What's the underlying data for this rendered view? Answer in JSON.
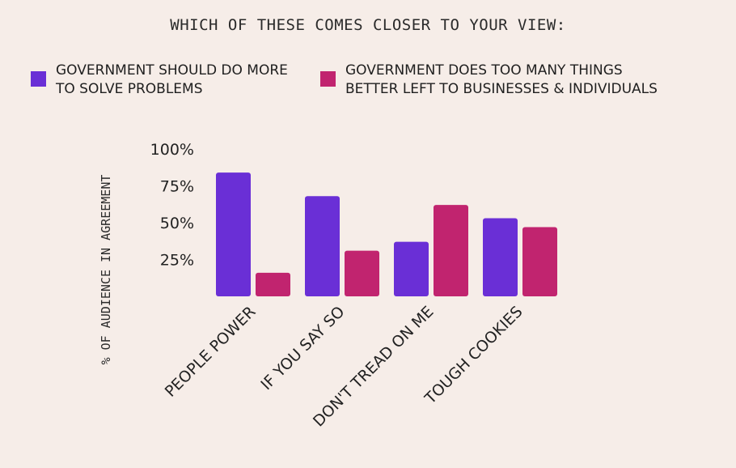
{
  "colors": {
    "background": "#f6ede8",
    "series_1": "#6a2fd6",
    "series_2": "#c1246f"
  },
  "chart_data": {
    "type": "bar",
    "title": "WHICH OF THESE COMES CLOSER TO YOUR VIEW:",
    "ylabel": "% OF AUDIENCE IN AGREEMENT",
    "xlabel": "",
    "categories": [
      "PEOPLE POWER",
      "IF YOU SAY SO",
      "DON'T TREAD ON ME",
      "TOUGH COOKIES"
    ],
    "series": [
      {
        "name": "GOVERNMENT SHOULD DO MORE\nTO SOLVE PROBLEMS",
        "color": "#6a2fd6",
        "values": [
          84,
          68,
          37,
          53
        ]
      },
      {
        "name": "GOVERNMENT DOES TOO MANY THINGS\nBETTER LEFT TO BUSINESSES & INDIVIDUALS",
        "color": "#c1246f",
        "values": [
          16,
          31,
          62,
          47
        ]
      }
    ],
    "ylim": [
      0,
      100
    ],
    "yticks": [
      25,
      50,
      75,
      100
    ],
    "ytick_labels": [
      "25%",
      "50%",
      "75%",
      "100%"
    ],
    "legend_position": "top",
    "grid": false
  }
}
